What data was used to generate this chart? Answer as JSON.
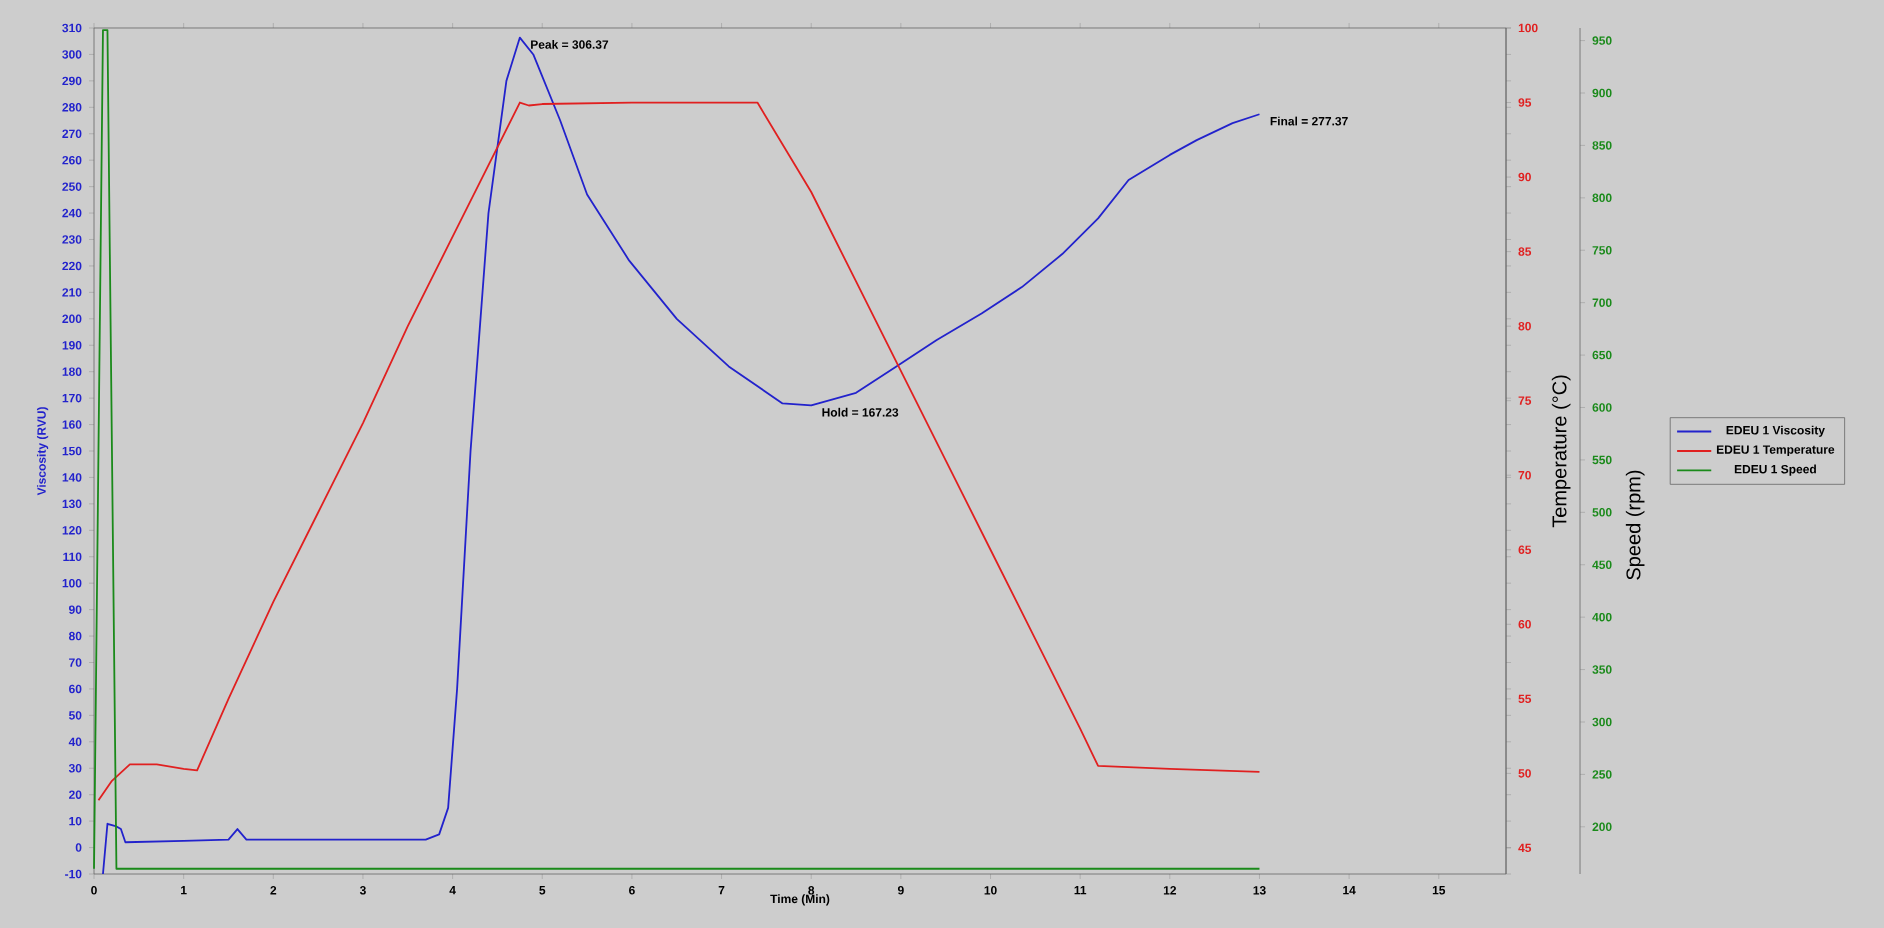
{
  "chart_data": {
    "type": "line",
    "xlabel": "Time (Min)",
    "ylabel": "Viscosity (RVU)",
    "y2label": "Temperature (°C)",
    "y3label": "Speed (rpm)",
    "xlim": [
      0,
      15.75
    ],
    "xticks": [
      0,
      1,
      2,
      3,
      4,
      5,
      6,
      7,
      8,
      9,
      10,
      11,
      12,
      13,
      14,
      15
    ],
    "ylim": [
      -10,
      310
    ],
    "yticks": [
      -10,
      0,
      10,
      20,
      30,
      40,
      50,
      60,
      70,
      80,
      90,
      100,
      110,
      120,
      130,
      140,
      150,
      160,
      170,
      180,
      190,
      200,
      210,
      220,
      230,
      240,
      250,
      260,
      270,
      280,
      290,
      300,
      310
    ],
    "y2lim": [
      43.25,
      100
    ],
    "y2ticks": [
      45,
      50,
      55,
      60,
      65,
      70,
      75,
      80,
      85,
      90,
      95,
      100
    ],
    "y3lim": [
      155,
      962
    ],
    "y3ticks": [
      200,
      250,
      300,
      350,
      400,
      450,
      500,
      550,
      600,
      650,
      700,
      750,
      800,
      850,
      900,
      950
    ],
    "legend": "right",
    "marker": "none",
    "line_style": "solid",
    "series": [
      {
        "name": "EDEU 1 Viscosity",
        "color": "#2222cc",
        "x": [
          0.1,
          0.15,
          0.25,
          0.3,
          0.35,
          1.0,
          1.5,
          1.6,
          1.7,
          2.5,
          3.0,
          3.7,
          3.85,
          3.95,
          4.05,
          4.2,
          4.4,
          4.6,
          4.75,
          4.9,
          5.2,
          5.5,
          5.97,
          6.5,
          7.08,
          7.68,
          8.0,
          8.5,
          8.95,
          9.4,
          9.9,
          10.35,
          10.8,
          11.2,
          11.54,
          12.0,
          12.3,
          12.7,
          13.0
        ],
        "values": [
          -10,
          9,
          8,
          7,
          2,
          2.5,
          3,
          7,
          3,
          3,
          3,
          3,
          5,
          15,
          60,
          150,
          240,
          290,
          306.37,
          300,
          275,
          247,
          222,
          200,
          182,
          168,
          167.23,
          172,
          182,
          192,
          202,
          212,
          224.5,
          238,
          252.5,
          262,
          267.6,
          274,
          277.37
        ]
      },
      {
        "name": "EDEU 1 Temperature",
        "color": "#e02020",
        "axis": "y2",
        "x": [
          0.05,
          0.2,
          0.4,
          0.7,
          1.0,
          1.15,
          1.5,
          2.0,
          2.5,
          3.0,
          3.5,
          4.0,
          4.5,
          4.75,
          4.85,
          5.0,
          6.0,
          7.0,
          7.4,
          8.0,
          8.5,
          9.0,
          9.5,
          10.0,
          10.5,
          11.0,
          11.2,
          12.0,
          13.0
        ],
        "values": [
          48.2,
          49.5,
          50.6,
          50.6,
          50.3,
          50.2,
          55,
          61.5,
          67.5,
          73.5,
          80,
          86,
          92,
          95,
          94.8,
          94.9,
          95,
          95,
          95,
          89,
          83,
          77,
          71,
          65,
          59,
          53,
          50.5,
          50.3,
          50.1
        ]
      },
      {
        "name": "EDEU 1 Speed",
        "color": "#1a8a1a",
        "axis": "y3",
        "x": [
          0,
          0.1,
          0.15,
          0.25,
          13
        ],
        "values": [
          160,
          960,
          960,
          160,
          160
        ]
      }
    ],
    "annotations": [
      {
        "text": "Peak = 306.37",
        "x": 4.75,
        "y": 306.37
      },
      {
        "text": "Hold = 167.23",
        "x": 8.0,
        "y": 167.23
      },
      {
        "text": "Final = 277.37",
        "x": 13.0,
        "y": 277.37
      }
    ]
  }
}
